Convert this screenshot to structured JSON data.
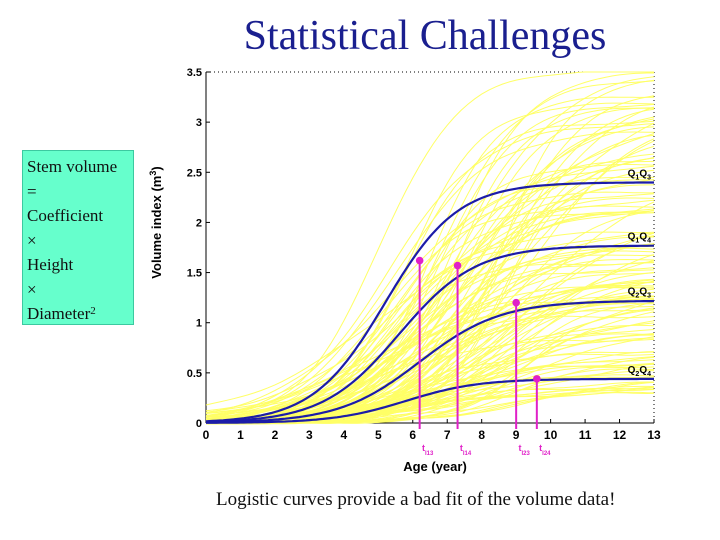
{
  "slide": {
    "title": "Statistical Challenges",
    "sidebox_lines": [
      "Stem volume",
      "=",
      "Coefficient",
      "×",
      "Height",
      "×",
      "Diameter"
    ],
    "sidebox_superscript": "2",
    "caption": "Logistic curves provide a bad fit of the volume data!"
  },
  "colors": {
    "title": "#1a1f8f",
    "sidebox_bg": "#66ffcc",
    "fit_curves": "#1c1ca8",
    "data_curves": "#ffff66",
    "markers": "#e020c8"
  },
  "chart_data": {
    "type": "line",
    "xlabel": "Age (year)",
    "ylabel": "Volume index (m3)",
    "xlim": [
      0,
      13
    ],
    "ylim": [
      0,
      3.5
    ],
    "xticks": [
      "0",
      "1",
      "2",
      "3",
      "4",
      "5",
      "6",
      "7",
      "8",
      "9",
      "10",
      "11",
      "12",
      "13"
    ],
    "yticks": [
      "0",
      "0.5",
      "1",
      "1.5",
      "2",
      "2.5",
      "3",
      "3.5"
    ],
    "grid": false,
    "background_curves": "many thin yellow individual tree volume curves",
    "series": [
      {
        "name": "Q1Q3",
        "label_main": "Q",
        "sub1": "1",
        "mid": "Q",
        "sub2": "3",
        "asymptote": 2.4,
        "midpoint": 5.2,
        "rate": 0.95
      },
      {
        "name": "Q1Q4",
        "label_main": "Q",
        "sub1": "1",
        "mid": "Q",
        "sub2": "4",
        "asymptote": 1.77,
        "midpoint": 5.6,
        "rate": 0.9
      },
      {
        "name": "Q2Q3",
        "label_main": "Q",
        "sub1": "2",
        "mid": "Q",
        "sub2": "3",
        "asymptote": 1.22,
        "midpoint": 6.2,
        "rate": 0.85
      },
      {
        "name": "Q2Q4",
        "label_main": "Q",
        "sub1": "2",
        "mid": "Q",
        "sub2": "4",
        "asymptote": 0.44,
        "midpoint": 5.8,
        "rate": 0.95
      }
    ],
    "markers": [
      {
        "label": "tI13",
        "x": 6.2,
        "y": 1.62
      },
      {
        "label": "tI14",
        "x": 7.3,
        "y": 1.57
      },
      {
        "label": "tI23",
        "x": 9.0,
        "y": 1.2
      },
      {
        "label": "tI24",
        "x": 9.6,
        "y": 0.44
      }
    ]
  }
}
